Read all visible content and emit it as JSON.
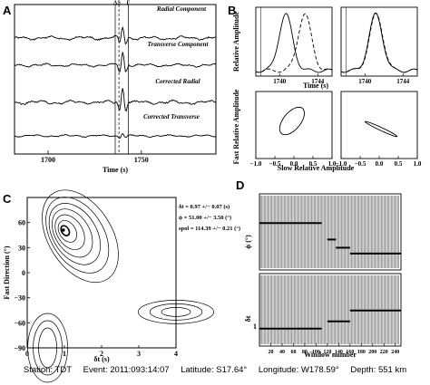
{
  "footer": {
    "station": "Station: TDT",
    "event": "Event: 2011:093:14:07",
    "latitude": "Latitude: S17.64°",
    "longitude": "Longitude: W178.59°",
    "depth": "Depth: 551 km"
  },
  "chart_data": [
    {
      "panel": "A",
      "type": "line",
      "xlabel": "Time (s)",
      "xlim": [
        1682,
        1790
      ],
      "xticks": [
        1700,
        1750
      ],
      "markers": [
        {
          "label": "A",
          "x": 1736,
          "style": "solid"
        },
        {
          "label": "S",
          "x": 1738,
          "style": "dashed"
        },
        {
          "label": "F",
          "x": 1743,
          "style": "solid"
        }
      ],
      "series": [
        {
          "name": "Radial Component",
          "noise": 0.6,
          "pulse_amp": 1.4
        },
        {
          "name": "Transverse Component",
          "noise": 0.5,
          "pulse_amp": 1.6
        },
        {
          "name": "Corrected Radial",
          "noise": 0.6,
          "pulse_amp": 1.8
        },
        {
          "name": "Corrected Transverse",
          "noise": 0.35,
          "pulse_amp": 0.4
        }
      ]
    },
    {
      "panel": "B",
      "type": "line",
      "subplots": [
        {
          "ylabel": "Relative Amplitude",
          "xlabel": "Time (s)",
          "xlim": [
            1737.5,
            1745.5
          ],
          "xticks": [
            1740,
            1744
          ],
          "series": [
            {
              "style": "solid",
              "center": 1740.6,
              "width": 1.0
            },
            {
              "style": "dashed",
              "center": 1742.6,
              "width": 1.0
            }
          ]
        },
        {
          "xlim": [
            1737.5,
            1745.5
          ],
          "xticks": [
            1740,
            1744
          ],
          "series": [
            {
              "style": "solid",
              "center": 1741.1,
              "width": 1.0
            },
            {
              "style": "dashed",
              "center": 1741.15,
              "width": 1.0
            }
          ]
        },
        {
          "ylabel": "Fast Relative Amplitude",
          "xlabel": "Slow Relative Amplitude",
          "xlim": [
            -1.0,
            1.0
          ],
          "ylim": [
            -1.0,
            1.0
          ],
          "xticks": [
            -1.0,
            -0.5,
            0.0,
            0.5,
            1.0
          ],
          "xtick_labels": [
            "−1.0",
            "−0.5",
            "0.0",
            "0.5",
            "1.0"
          ],
          "motion": "elliptical"
        },
        {
          "xlim": [
            -1.0,
            1.0
          ],
          "ylim": [
            -1.0,
            1.0
          ],
          "xticks": [
            -1.0,
            -0.5,
            0.0,
            0.5,
            1.0
          ],
          "xtick_labels": [
            "−1.0",
            "−0.5",
            "0.0",
            "0.5",
            "1.0"
          ],
          "motion": "linear"
        }
      ]
    },
    {
      "panel": "C",
      "type": "contour",
      "xlabel": "δt (s)",
      "ylabel": "Fast Direction (°)",
      "xlim": [
        0,
        4
      ],
      "ylim": [
        -90,
        90
      ],
      "xticks": [
        0,
        1,
        2,
        3,
        4
      ],
      "yticks": [
        -90,
        -60,
        -30,
        0,
        30,
        60
      ],
      "ytick_labels": [
        "−90",
        "−60",
        "−30",
        "0",
        "30",
        "60"
      ],
      "best": {
        "dt": 0.97,
        "phi": 51.0
      },
      "annotations": [
        "δt = 0.97 +/− 0.07 (s)",
        "ϕ = 51.00 +/− 3.50 (°)",
        "spol = 114.39 +/− 0.21 (°)"
      ]
    },
    {
      "panel": "D",
      "type": "scatter",
      "xlabel": "Window number",
      "xlim": [
        0,
        250
      ],
      "xticks": [
        20,
        40,
        60,
        80,
        100,
        120,
        140,
        160,
        180,
        200,
        220,
        240
      ],
      "subplots": [
        {
          "ylabel": "ϕ (°)",
          "segments": [
            [
              0,
              110,
              50
            ],
            [
              120,
              135,
              22
            ],
            [
              135,
              160,
              8
            ],
            [
              160,
              250,
              -2
            ]
          ]
        },
        {
          "ylabel": "δt",
          "ytick_labels": [
            "1"
          ],
          "segments": [
            [
              0,
              110,
              0.93
            ],
            [
              120,
              160,
              1.15
            ],
            [
              160,
              250,
              1.48
            ]
          ]
        }
      ]
    }
  ]
}
